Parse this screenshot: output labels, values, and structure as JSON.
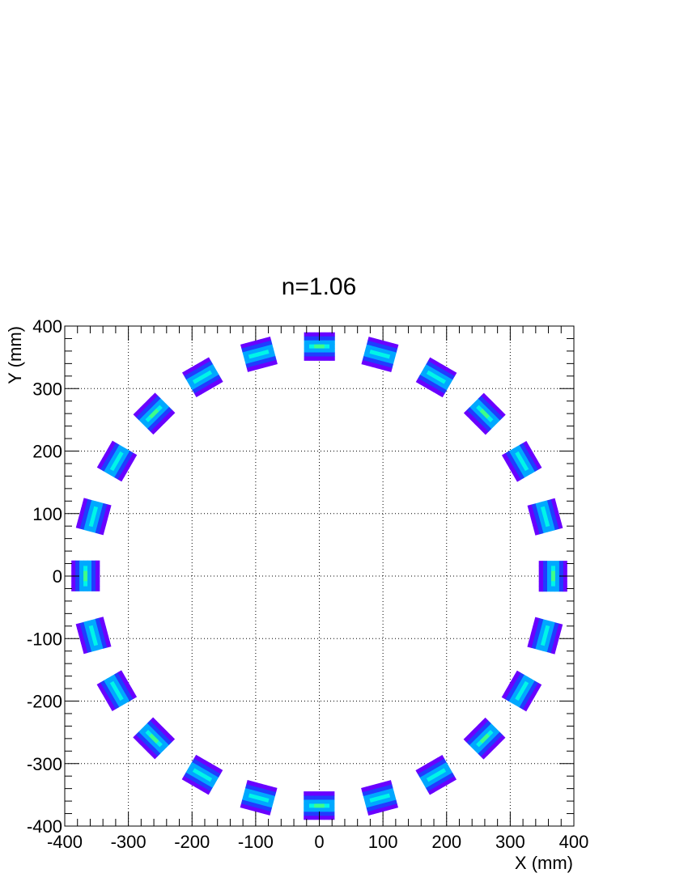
{
  "chart_data": {
    "type": "heatmap",
    "title": "n=1.06",
    "xlabel": "X (mm)",
    "ylabel": "Y (mm)",
    "xlim": [
      -400,
      400
    ],
    "ylim": [
      -400,
      400
    ],
    "x_ticks": [
      -400,
      -300,
      -200,
      -100,
      0,
      100,
      200,
      300,
      400
    ],
    "y_ticks": [
      -400,
      -300,
      -200,
      -100,
      0,
      100,
      200,
      300,
      400
    ],
    "x_tick_labels": [
      "-400",
      "-300",
      "-200",
      "-100",
      "0",
      "100",
      "200",
      "300",
      "400"
    ],
    "y_tick_labels": [
      "-400",
      "-300",
      "-200",
      "-100",
      "0",
      "100",
      "200",
      "300",
      "400"
    ],
    "grid": true,
    "grid_style": "dotted",
    "ring": {
      "module_count": 24,
      "inner_radius_mm": 345,
      "outer_radius_mm": 390,
      "module_width_mm": 48,
      "angle_step_deg": 15,
      "start_angle_deg": 90
    },
    "colors": {
      "low": "#6a00ff",
      "mid_low": "#1f3dff",
      "mid": "#00a8ff",
      "high": "#00f5e8",
      "peak": "#3dff8a",
      "hot": "#ff2a00"
    }
  }
}
